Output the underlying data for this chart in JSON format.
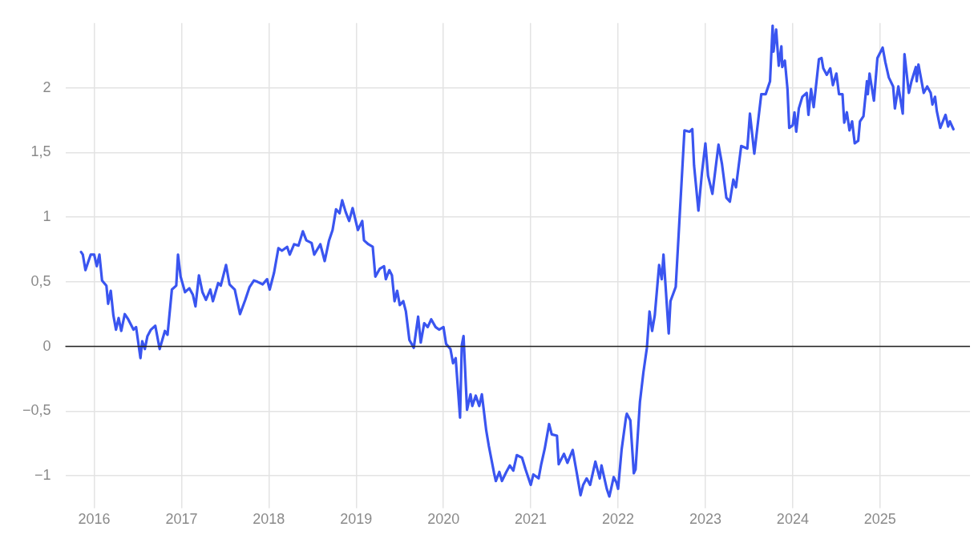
{
  "chart_data": {
    "type": "line",
    "x": [
      2015.85,
      2015.87,
      2015.9,
      2015.93,
      2015.96,
      2016.0,
      2016.03,
      2016.06,
      2016.09,
      2016.14,
      2016.16,
      2016.19,
      2016.22,
      2016.25,
      2016.28,
      2016.31,
      2016.35,
      2016.39,
      2016.45,
      2016.48,
      2016.53,
      2016.55,
      2016.58,
      2016.61,
      2016.65,
      2016.7,
      2016.75,
      2016.81,
      2016.84,
      2016.89,
      2016.94,
      2016.96,
      2016.99,
      2017.04,
      2017.09,
      2017.13,
      2017.16,
      2017.2,
      2017.24,
      2017.28,
      2017.33,
      2017.36,
      2017.42,
      2017.45,
      2017.51,
      2017.55,
      2017.61,
      2017.67,
      2017.73,
      2017.78,
      2017.83,
      2017.87,
      2017.93,
      2017.98,
      2018.01,
      2018.06,
      2018.11,
      2018.15,
      2018.21,
      2018.24,
      2018.29,
      2018.34,
      2018.39,
      2018.43,
      2018.49,
      2018.52,
      2018.59,
      2018.64,
      2018.69,
      2018.73,
      2018.77,
      2018.81,
      2018.84,
      2018.88,
      2018.92,
      2018.96,
      2019.02,
      2019.07,
      2019.09,
      2019.14,
      2019.19,
      2019.22,
      2019.27,
      2019.32,
      2019.34,
      2019.38,
      2019.41,
      2019.44,
      2019.47,
      2019.5,
      2019.54,
      2019.57,
      2019.61,
      2019.66,
      2019.71,
      2019.74,
      2019.78,
      2019.82,
      2019.86,
      2019.91,
      2019.95,
      2020.0,
      2020.03,
      2020.08,
      2020.11,
      2020.14,
      2020.19,
      2020.21,
      2020.23,
      2020.27,
      2020.31,
      2020.33,
      2020.37,
      2020.41,
      2020.44,
      2020.49,
      2020.52,
      2020.58,
      2020.6,
      2020.64,
      2020.67,
      2020.72,
      2020.76,
      2020.8,
      2020.84,
      2020.9,
      2020.94,
      2021.0,
      2021.03,
      2021.09,
      2021.12,
      2021.16,
      2021.21,
      2021.24,
      2021.3,
      2021.32,
      2021.38,
      2021.42,
      2021.48,
      2021.53,
      2021.57,
      2021.6,
      2021.64,
      2021.68,
      2021.74,
      2021.79,
      2021.81,
      2021.87,
      2021.9,
      2021.95,
      2021.98,
      2022.0,
      2022.04,
      2022.09,
      2022.1,
      2022.14,
      2022.18,
      2022.2,
      2022.25,
      2022.29,
      2022.33,
      2022.36,
      2022.39,
      2022.42,
      2022.47,
      2022.5,
      2022.52,
      2022.58,
      2022.6,
      2022.66,
      2022.76,
      2022.82,
      2022.85,
      2022.87,
      2022.92,
      2022.96,
      2023.0,
      2023.03,
      2023.08,
      2023.15,
      2023.19,
      2023.24,
      2023.28,
      2023.32,
      2023.35,
      2023.41,
      2023.48,
      2023.51,
      2023.56,
      2023.64,
      2023.69,
      2023.74,
      2023.77,
      2023.78,
      2023.81,
      2023.84,
      2023.87,
      2023.88,
      2023.91,
      2023.94,
      2023.96,
      2024.0,
      2024.02,
      2024.04,
      2024.07,
      2024.11,
      2024.16,
      2024.18,
      2024.21,
      2024.24,
      2024.3,
      2024.33,
      2024.35,
      2024.39,
      2024.43,
      2024.46,
      2024.5,
      2024.53,
      2024.57,
      2024.59,
      2024.62,
      2024.65,
      2024.68,
      2024.71,
      2024.75,
      2024.77,
      2024.81,
      2024.85,
      2024.86,
      2024.88,
      2024.93,
      2024.97,
      2025.0,
      2025.03,
      2025.06,
      2025.1,
      2025.15,
      2025.17,
      2025.21,
      2025.26,
      2025.28,
      2025.33,
      2025.36,
      2025.41,
      2025.42,
      2025.44,
      2025.5,
      2025.54,
      2025.58,
      2025.6,
      2025.63,
      2025.65,
      2025.69,
      2025.75,
      2025.78,
      2025.8,
      2025.84
    ],
    "series": [
      {
        "color": "#3a55f0",
        "values": [
          0.73,
          0.71,
          0.59,
          0.65,
          0.71,
          0.71,
          0.62,
          0.71,
          0.51,
          0.47,
          0.33,
          0.43,
          0.24,
          0.13,
          0.22,
          0.12,
          0.25,
          0.21,
          0.13,
          0.15,
          -0.09,
          0.04,
          -0.02,
          0.08,
          0.13,
          0.16,
          -0.02,
          0.12,
          0.09,
          0.44,
          0.47,
          0.71,
          0.54,
          0.42,
          0.45,
          0.4,
          0.31,
          0.55,
          0.42,
          0.36,
          0.44,
          0.35,
          0.49,
          0.47,
          0.63,
          0.48,
          0.44,
          0.25,
          0.36,
          0.46,
          0.51,
          0.5,
          0.48,
          0.52,
          0.44,
          0.57,
          0.76,
          0.74,
          0.77,
          0.71,
          0.79,
          0.78,
          0.89,
          0.82,
          0.8,
          0.71,
          0.79,
          0.66,
          0.82,
          0.9,
          1.06,
          1.03,
          1.13,
          1.04,
          0.97,
          1.07,
          0.9,
          0.97,
          0.82,
          0.79,
          0.77,
          0.54,
          0.6,
          0.62,
          0.52,
          0.59,
          0.55,
          0.35,
          0.43,
          0.32,
          0.35,
          0.27,
          0.05,
          -0.01,
          0.23,
          0.03,
          0.18,
          0.15,
          0.21,
          0.15,
          0.13,
          0.15,
          0.02,
          -0.02,
          -0.13,
          -0.09,
          -0.55,
          0.01,
          0.08,
          -0.49,
          -0.37,
          -0.46,
          -0.38,
          -0.46,
          -0.37,
          -0.65,
          -0.77,
          -0.98,
          -1.04,
          -0.97,
          -1.04,
          -0.97,
          -0.92,
          -0.96,
          -0.84,
          -0.86,
          -0.95,
          -1.07,
          -0.99,
          -1.02,
          -0.91,
          -0.79,
          -0.6,
          -0.68,
          -0.69,
          -0.91,
          -0.83,
          -0.9,
          -0.8,
          -0.99,
          -1.15,
          -1.07,
          -1.02,
          -1.07,
          -0.89,
          -1.02,
          -0.92,
          -1.1,
          -1.16,
          -1.01,
          -1.05,
          -1.1,
          -0.8,
          -0.55,
          -0.52,
          -0.57,
          -0.98,
          -0.95,
          -0.43,
          -0.2,
          -0.01,
          0.27,
          0.12,
          0.24,
          0.63,
          0.52,
          0.71,
          0.1,
          0.35,
          0.46,
          1.67,
          1.66,
          1.68,
          1.4,
          1.05,
          1.34,
          1.57,
          1.32,
          1.18,
          1.56,
          1.41,
          1.15,
          1.12,
          1.29,
          1.23,
          1.55,
          1.53,
          1.8,
          1.49,
          1.95,
          1.95,
          2.05,
          2.48,
          2.28,
          2.45,
          2.17,
          2.32,
          2.16,
          2.21,
          1.99,
          1.69,
          1.71,
          1.81,
          1.66,
          1.84,
          1.93,
          1.96,
          1.79,
          1.99,
          1.85,
          2.22,
          2.23,
          2.15,
          2.1,
          2.15,
          2.02,
          2.11,
          1.95,
          1.95,
          1.73,
          1.81,
          1.67,
          1.74,
          1.57,
          1.59,
          1.74,
          1.78,
          2.05,
          1.95,
          2.11,
          1.9,
          2.23,
          2.27,
          2.31,
          2.2,
          2.08,
          2.01,
          1.84,
          2.01,
          1.8,
          2.26,
          1.96,
          2.05,
          2.16,
          2.05,
          2.18,
          1.96,
          2.01,
          1.96,
          1.87,
          1.93,
          1.82,
          1.69,
          1.79,
          1.7,
          1.74,
          1.68
        ]
      }
    ],
    "xlim": [
      2015.67,
      2026.03
    ],
    "xticks": [
      2016,
      2017,
      2018,
      2019,
      2020,
      2021,
      2022,
      2023,
      2024,
      2025
    ],
    "ylim": [
      -1.2,
      2.5
    ],
    "yticks": [
      {
        "value": -1,
        "label": "−1"
      },
      {
        "value": -0.5,
        "label": "−0,5"
      },
      0,
      {
        "value": 0.5,
        "label": "0,5"
      },
      1,
      {
        "value": 1.5,
        "label": "1,5"
      },
      2
    ],
    "ref_lines": [
      {
        "axis": "y",
        "value": 0,
        "color": "#222222"
      }
    ],
    "grid": true,
    "marker": "none",
    "line_style": "solid",
    "legend": false
  }
}
